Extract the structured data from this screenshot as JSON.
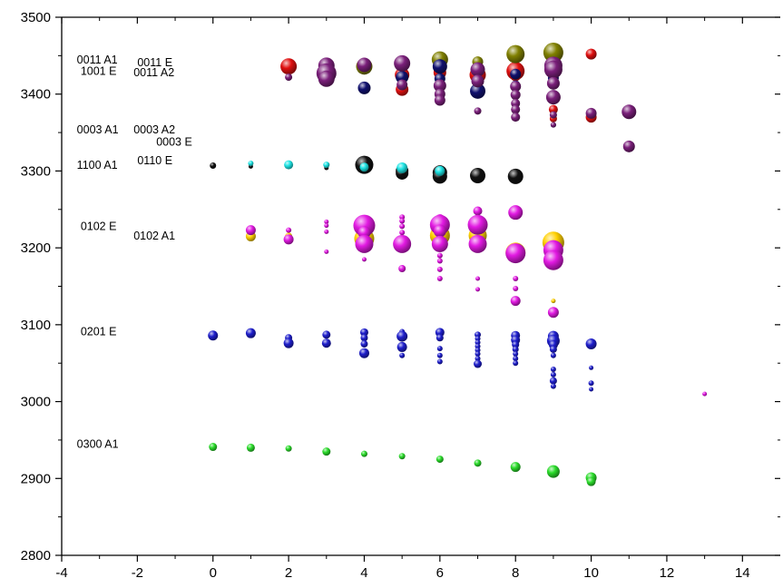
{
  "chart_data": {
    "type": "scatter",
    "title": "",
    "xlabel": "",
    "ylabel": "",
    "xlim": [
      -4,
      15
    ],
    "ylim": [
      2800,
      3500
    ],
    "x_ticks": [
      -4,
      -2,
      0,
      2,
      4,
      6,
      8,
      10,
      12,
      14
    ],
    "y_ticks": [
      2800,
      2900,
      3000,
      3100,
      3200,
      3300,
      3400,
      3500
    ],
    "grid": false,
    "legend": "none",
    "annotations": [
      {
        "text": "0011 A1",
        "x": -3.6,
        "y": 3440
      },
      {
        "text": "1001 E",
        "x": -3.5,
        "y": 3425
      },
      {
        "text": "0011 E",
        "x": -2.0,
        "y": 3436
      },
      {
        "text": "0011 A2",
        "x": -2.1,
        "y": 3423
      },
      {
        "text": "0003 A1",
        "x": -3.6,
        "y": 3349
      },
      {
        "text": "0003 A2",
        "x": -2.1,
        "y": 3349
      },
      {
        "text": "0003 E",
        "x": -1.5,
        "y": 3333
      },
      {
        "text": "1100 A1",
        "x": -3.6,
        "y": 3303
      },
      {
        "text": "0110 E",
        "x": -2.0,
        "y": 3309
      },
      {
        "text": "0102 E",
        "x": -3.5,
        "y": 3223
      },
      {
        "text": "0102 A1",
        "x": -2.1,
        "y": 3211
      },
      {
        "text": "0201 E",
        "x": -3.5,
        "y": 3086
      },
      {
        "text": "0300 A1",
        "x": -3.6,
        "y": 2940
      }
    ],
    "series": [
      {
        "color": "#2bdc2b",
        "points": [
          [
            0,
            2941,
            4.5
          ],
          [
            1,
            2940,
            4.5
          ],
          [
            2,
            2939,
            3.5
          ],
          [
            3,
            2935,
            4.5
          ],
          [
            4,
            2932,
            3.5
          ],
          [
            5,
            2929,
            3.5
          ],
          [
            6,
            2925,
            4
          ],
          [
            7,
            2920,
            4
          ],
          [
            8,
            2915,
            5.5
          ],
          [
            9,
            2909,
            7
          ],
          [
            10,
            2901,
            6
          ],
          [
            10,
            2896,
            5
          ]
        ]
      },
      {
        "color": "#1e1ecc",
        "points": [
          [
            0,
            3086,
            5.5
          ],
          [
            1,
            3089,
            5.5
          ],
          [
            2,
            3083,
            4
          ],
          [
            2,
            3076,
            5.5
          ],
          [
            3,
            3087,
            4.5
          ],
          [
            3,
            3076,
            5
          ],
          [
            4,
            3090,
            4.5
          ],
          [
            4,
            3083,
            4
          ],
          [
            4,
            3075,
            4
          ],
          [
            4,
            3063,
            5.5
          ],
          [
            5,
            3091,
            3
          ],
          [
            5,
            3085,
            6
          ],
          [
            5,
            3071,
            5.5
          ],
          [
            5,
            3060,
            3
          ],
          [
            6,
            3090,
            5
          ],
          [
            6,
            3083,
            4
          ],
          [
            6,
            3069,
            3
          ],
          [
            6,
            3060,
            3
          ],
          [
            6,
            3052,
            3
          ],
          [
            7,
            3087,
            3.5
          ],
          [
            7,
            3082,
            3
          ],
          [
            7,
            3077,
            3
          ],
          [
            7,
            3072,
            3
          ],
          [
            7,
            3067,
            3
          ],
          [
            7,
            3062,
            3
          ],
          [
            7,
            3056,
            3
          ],
          [
            7,
            3049,
            4.5
          ],
          [
            8,
            3086,
            5
          ],
          [
            8,
            3080,
            5
          ],
          [
            8,
            3074,
            4
          ],
          [
            8,
            3068,
            3.5
          ],
          [
            8,
            3062,
            3
          ],
          [
            8,
            3056,
            3
          ],
          [
            8,
            3050,
            3
          ],
          [
            9,
            3085,
            6
          ],
          [
            9,
            3079,
            7
          ],
          [
            9,
            3074,
            5
          ],
          [
            9,
            3068,
            4
          ],
          [
            9,
            3060,
            3
          ],
          [
            9,
            3042,
            3
          ],
          [
            9,
            3035,
            3
          ],
          [
            9,
            3027,
            4
          ],
          [
            9,
            3020,
            3
          ],
          [
            10,
            3075,
            6
          ],
          [
            10,
            3044,
            2.5
          ],
          [
            10,
            3024,
            3
          ],
          [
            10,
            3016,
            2.5
          ]
        ]
      },
      {
        "color": "#ffd000",
        "points": [
          [
            1,
            3215,
            5.5
          ],
          [
            2,
            3215,
            4
          ],
          [
            4,
            3212,
            11
          ],
          [
            5,
            3205,
            9
          ],
          [
            6,
            3216,
            11
          ],
          [
            7,
            3216,
            10
          ],
          [
            8,
            3194,
            11
          ],
          [
            9,
            3207,
            12
          ],
          [
            9,
            3131,
            2.5
          ]
        ]
      },
      {
        "color": "#e21ae2",
        "points": [
          [
            1,
            3223,
            5.5
          ],
          [
            2,
            3223,
            3
          ],
          [
            2,
            3211,
            5.5
          ],
          [
            3,
            3234,
            2.5
          ],
          [
            3,
            3229,
            2.5
          ],
          [
            3,
            3221,
            2.5
          ],
          [
            3,
            3195,
            2.5
          ],
          [
            4,
            3229,
            12
          ],
          [
            4,
            3220,
            7
          ],
          [
            4,
            3205,
            10
          ],
          [
            4,
            3185,
            2.5
          ],
          [
            5,
            3240,
            3
          ],
          [
            5,
            3235,
            3
          ],
          [
            5,
            3228,
            3
          ],
          [
            5,
            3220,
            3
          ],
          [
            5,
            3205,
            10
          ],
          [
            5,
            3173,
            4
          ],
          [
            6,
            3238,
            5
          ],
          [
            6,
            3230,
            11
          ],
          [
            6,
            3222,
            7
          ],
          [
            6,
            3205,
            9
          ],
          [
            6,
            3190,
            3
          ],
          [
            6,
            3183,
            3
          ],
          [
            6,
            3172,
            3
          ],
          [
            6,
            3160,
            3
          ],
          [
            7,
            3248,
            5
          ],
          [
            7,
            3230,
            11
          ],
          [
            7,
            3205,
            10
          ],
          [
            7,
            3160,
            2.5
          ],
          [
            7,
            3146,
            2.5
          ],
          [
            8,
            3246,
            8
          ],
          [
            8,
            3193,
            11
          ],
          [
            8,
            3160,
            3
          ],
          [
            8,
            3147,
            3
          ],
          [
            8,
            3131,
            5.5
          ],
          [
            9,
            3197,
            11
          ],
          [
            9,
            3184,
            11
          ],
          [
            9,
            3116,
            6
          ],
          [
            13,
            3010,
            2.5
          ]
        ]
      },
      {
        "color": "#111111",
        "points": [
          [
            0,
            3307,
            3.5
          ],
          [
            1,
            3306,
            2.5
          ],
          [
            3,
            3304,
            2.5
          ],
          [
            4,
            3308,
            10
          ],
          [
            5,
            3300,
            7
          ],
          [
            5,
            3297,
            7
          ],
          [
            6,
            3298,
            8
          ],
          [
            6,
            3293,
            8
          ],
          [
            7,
            3294,
            8.5
          ],
          [
            8,
            3293,
            8.5
          ]
        ]
      },
      {
        "color": "#1ee5e5",
        "points": [
          [
            1,
            3310,
            3
          ],
          [
            2,
            3308,
            5
          ],
          [
            3,
            3308,
            3.5
          ],
          [
            4,
            3305,
            5
          ],
          [
            5,
            3304,
            6
          ],
          [
            6,
            3300,
            5.5
          ]
        ]
      },
      {
        "color": "#e01010",
        "points": [
          [
            2,
            3436,
            9
          ],
          [
            4,
            3432,
            5.5
          ],
          [
            5,
            3425,
            8
          ],
          [
            5,
            3406,
            7
          ],
          [
            6,
            3442,
            5.5
          ],
          [
            6,
            3428,
            7
          ],
          [
            7,
            3425,
            9
          ],
          [
            8,
            3430,
            10
          ],
          [
            8,
            3424,
            6
          ],
          [
            9,
            3425,
            6
          ],
          [
            9,
            3380,
            5
          ],
          [
            9,
            3368,
            4
          ],
          [
            10,
            3452,
            6
          ],
          [
            10,
            3370,
            6
          ]
        ]
      },
      {
        "color": "#808000",
        "points": [
          [
            4,
            3436,
            9
          ],
          [
            6,
            3445,
            9
          ],
          [
            7,
            3442,
            6
          ],
          [
            8,
            3452,
            10
          ],
          [
            9,
            3454,
            11
          ]
        ]
      },
      {
        "color": "#10106e",
        "points": [
          [
            4,
            3408,
            7
          ],
          [
            5,
            3422,
            7
          ],
          [
            6,
            3436,
            8
          ],
          [
            6,
            3420,
            6
          ],
          [
            7,
            3404,
            8.5
          ],
          [
            8,
            3426,
            6
          ],
          [
            8,
            3412,
            5
          ],
          [
            9,
            3421,
            6
          ],
          [
            9,
            3418,
            5
          ],
          [
            9,
            3360,
            3
          ]
        ]
      },
      {
        "color": "#7a1f7a",
        "points": [
          [
            2,
            3422,
            4
          ],
          [
            3,
            3437,
            9
          ],
          [
            3,
            3427,
            11
          ],
          [
            3,
            3420,
            9
          ],
          [
            4,
            3438,
            8
          ],
          [
            5,
            3440,
            9
          ],
          [
            5,
            3412,
            6
          ],
          [
            6,
            3411,
            7
          ],
          [
            6,
            3400,
            6
          ],
          [
            6,
            3392,
            6
          ],
          [
            7,
            3432,
            8
          ],
          [
            7,
            3417,
            7
          ],
          [
            7,
            3378,
            4
          ],
          [
            8,
            3410,
            6
          ],
          [
            8,
            3399,
            5.5
          ],
          [
            8,
            3388,
            5
          ],
          [
            8,
            3380,
            5
          ],
          [
            8,
            3370,
            5
          ],
          [
            9,
            3437,
            10
          ],
          [
            9,
            3432,
            10
          ],
          [
            9,
            3414,
            7
          ],
          [
            9,
            3396,
            8
          ],
          [
            9,
            3373,
            4
          ],
          [
            9,
            3360,
            3
          ],
          [
            10,
            3375,
            6
          ],
          [
            11,
            3377,
            8
          ],
          [
            11,
            3332,
            6.5
          ]
        ]
      }
    ]
  }
}
